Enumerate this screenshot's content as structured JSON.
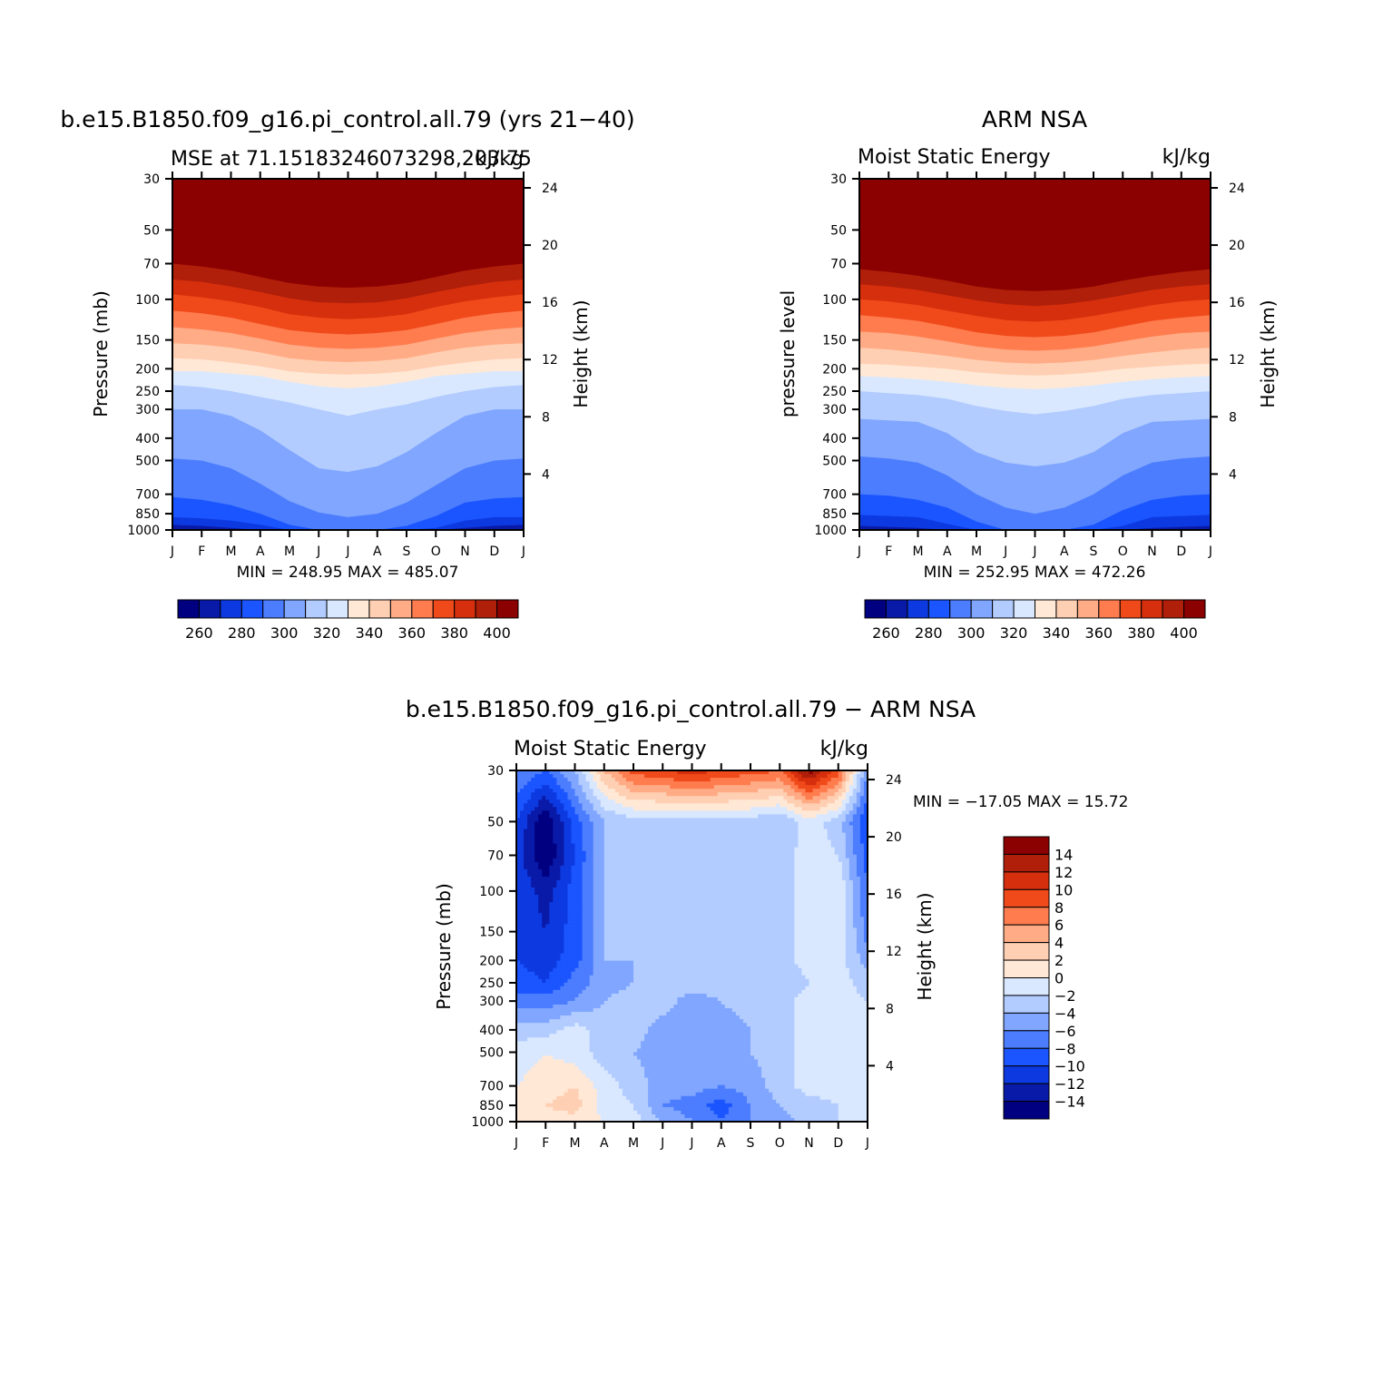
{
  "chart_data": [
    {
      "type": "heatmap",
      "title": "b.e15.B1850.f09_g16.pi_control.all.79 (yrs 21−40)",
      "subtitle_left": "MSE at 71.15183246073298,203.75",
      "subtitle_right": "kJ/kg",
      "ylabel": "Pressure (mb)",
      "ylabel_right": "Height (km)",
      "x_ticks": [
        "J",
        "F",
        "M",
        "A",
        "M",
        "J",
        "J",
        "A",
        "S",
        "O",
        "N",
        "D",
        "J"
      ],
      "y_ticks": [
        "30",
        "50",
        "70",
        "100",
        "150",
        "200",
        "250",
        "300",
        "400",
        "500",
        "700",
        "850",
        "1000"
      ],
      "y_ticks_right": [
        "24",
        "20",
        "16",
        "12",
        "8",
        "4"
      ],
      "min_max_text": "MIN = 248.95 MAX = 485.07",
      "contour_levels": [
        260,
        270,
        280,
        290,
        300,
        310,
        320,
        330,
        340,
        350,
        360,
        370,
        380,
        390,
        400
      ],
      "colorbar_labels": [
        "260",
        "280",
        "300",
        "320",
        "340",
        "360",
        "380",
        "400"
      ],
      "colors": [
        "#000080",
        "#0a1aa8",
        "#0d3ae0",
        "#1a55ff",
        "#4c7dff",
        "#80a6ff",
        "#b2ccff",
        "#d9e8ff",
        "#ffe8d5",
        "#ffcfb3",
        "#ffab85",
        "#ff7c4f",
        "#f04a1a",
        "#d62f0d",
        "#b01f0a",
        "#8b0000"
      ],
      "level_boundary_pressures": [
        [
          1000,
          1000,
          1000,
          1000,
          1000,
          1000,
          1000,
          1000,
          1000,
          1000,
          1000,
          1000,
          1000
        ],
        [
          950,
          960,
          980,
          1000,
          1000,
          1000,
          1000,
          1000,
          1000,
          1000,
          980,
          960,
          950
        ],
        [
          880,
          890,
          910,
          950,
          1000,
          1000,
          1000,
          1000,
          1000,
          980,
          910,
          880,
          880
        ],
        [
          720,
          740,
          780,
          850,
          950,
          1000,
          1000,
          1000,
          960,
          870,
          760,
          730,
          720
        ],
        [
          490,
          500,
          540,
          630,
          750,
          840,
          880,
          850,
          760,
          640,
          540,
          500,
          490
        ],
        [
          300,
          300,
          320,
          370,
          450,
          540,
          560,
          530,
          460,
          380,
          320,
          300,
          300
        ],
        [
          235,
          240,
          250,
          265,
          280,
          300,
          320,
          300,
          285,
          265,
          250,
          240,
          235
        ],
        [
          205,
          205,
          210,
          215,
          228,
          238,
          243,
          238,
          228,
          215,
          210,
          205,
          205
        ],
        [
          180,
          182,
          188,
          195,
          205,
          210,
          212,
          210,
          205,
          195,
          188,
          182,
          180
        ],
        [
          155,
          157,
          162,
          170,
          180,
          185,
          187,
          185,
          180,
          170,
          162,
          157,
          155
        ],
        [
          132,
          135,
          140,
          148,
          157,
          162,
          164,
          162,
          157,
          148,
          140,
          135,
          132
        ],
        [
          112,
          115,
          120,
          128,
          136,
          140,
          142,
          140,
          136,
          128,
          120,
          115,
          112
        ],
        [
          95,
          98,
          102,
          108,
          116,
          120,
          122,
          120,
          116,
          108,
          102,
          98,
          95
        ],
        [
          82,
          84,
          88,
          93,
          99,
          103,
          104,
          103,
          99,
          93,
          88,
          84,
          82
        ],
        [
          70,
          72,
          75,
          80,
          85,
          88,
          89,
          88,
          85,
          80,
          75,
          72,
          70
        ],
        [
          60,
          62,
          65,
          69,
          74,
          77,
          78,
          77,
          74,
          69,
          65,
          62,
          60
        ]
      ]
    },
    {
      "type": "heatmap",
      "title": "ARM NSA",
      "subtitle_left": "Moist Static Energy",
      "subtitle_right": "kJ/kg",
      "ylabel": "pressure level",
      "ylabel_right": "Height (km)",
      "x_ticks": [
        "J",
        "F",
        "M",
        "A",
        "M",
        "J",
        "J",
        "A",
        "S",
        "O",
        "N",
        "D",
        "J"
      ],
      "y_ticks": [
        "30",
        "50",
        "70",
        "100",
        "150",
        "200",
        "250",
        "300",
        "400",
        "500",
        "700",
        "850",
        "1000"
      ],
      "y_ticks_right": [
        "24",
        "20",
        "16",
        "12",
        "8",
        "4"
      ],
      "min_max_text": "MIN = 252.95 MAX = 472.26",
      "contour_levels": [
        260,
        270,
        280,
        290,
        300,
        310,
        320,
        330,
        340,
        350,
        360,
        370,
        380,
        390,
        400
      ],
      "colorbar_labels": [
        "260",
        "280",
        "300",
        "320",
        "340",
        "360",
        "380",
        "400"
      ],
      "colors": [
        "#000080",
        "#0a1aa8",
        "#0d3ae0",
        "#1a55ff",
        "#4c7dff",
        "#80a6ff",
        "#b2ccff",
        "#d9e8ff",
        "#ffe8d5",
        "#ffcfb3",
        "#ffab85",
        "#ff7c4f",
        "#f04a1a",
        "#d62f0d",
        "#b01f0a",
        "#8b0000"
      ],
      "level_boundary_pressures": [
        [
          1000,
          1000,
          1000,
          1000,
          1000,
          1000,
          1000,
          1000,
          1000,
          1000,
          1000,
          1000,
          1000
        ],
        [
          960,
          970,
          980,
          1000,
          1000,
          1000,
          1000,
          1000,
          1000,
          1000,
          980,
          970,
          960
        ],
        [
          860,
          870,
          880,
          940,
          1000,
          1000,
          1000,
          1000,
          1000,
          960,
          880,
          870,
          860
        ],
        [
          700,
          710,
          740,
          800,
          920,
          1000,
          1000,
          1000,
          950,
          820,
          740,
          710,
          700
        ],
        [
          480,
          490,
          510,
          580,
          700,
          800,
          850,
          800,
          700,
          580,
          510,
          490,
          480
        ],
        [
          330,
          335,
          340,
          380,
          460,
          510,
          530,
          510,
          460,
          380,
          340,
          335,
          330
        ],
        [
          250,
          255,
          260,
          270,
          290,
          305,
          315,
          305,
          290,
          270,
          260,
          255,
          250
        ],
        [
          215,
          218,
          222,
          228,
          236,
          242,
          245,
          242,
          236,
          228,
          222,
          218,
          215
        ],
        [
          190,
          192,
          196,
          200,
          207,
          212,
          214,
          212,
          207,
          200,
          196,
          192,
          190
        ],
        [
          162,
          165,
          170,
          176,
          183,
          188,
          190,
          188,
          183,
          176,
          170,
          165,
          162
        ],
        [
          138,
          140,
          145,
          152,
          160,
          165,
          167,
          165,
          160,
          152,
          145,
          140,
          138
        ],
        [
          117,
          120,
          124,
          131,
          139,
          144,
          146,
          144,
          139,
          131,
          124,
          120,
          117
        ],
        [
          100,
          102,
          106,
          112,
          118,
          123,
          125,
          123,
          118,
          112,
          106,
          102,
          100
        ],
        [
          86,
          88,
          91,
          96,
          101,
          105,
          107,
          105,
          101,
          96,
          91,
          88,
          86
        ],
        [
          74,
          76,
          79,
          83,
          88,
          91,
          92,
          91,
          88,
          83,
          79,
          76,
          74
        ],
        [
          64,
          66,
          68,
          72,
          76,
          79,
          80,
          79,
          76,
          72,
          68,
          66,
          64
        ]
      ]
    },
    {
      "type": "heatmap",
      "title": "b.e15.B1850.f09_g16.pi_control.all.79 − ARM NSA",
      "subtitle_left": "Moist Static Energy",
      "subtitle_right": "kJ/kg",
      "ylabel": "Pressure (mb)",
      "ylabel_right": "Height (km)",
      "x_ticks": [
        "J",
        "F",
        "M",
        "A",
        "M",
        "J",
        "J",
        "A",
        "S",
        "O",
        "N",
        "D",
        "J"
      ],
      "y_ticks": [
        "30",
        "50",
        "70",
        "100",
        "150",
        "200",
        "250",
        "300",
        "400",
        "500",
        "700",
        "850",
        "1000"
      ],
      "y_ticks_right": [
        "24",
        "20",
        "16",
        "12",
        "8",
        "4"
      ],
      "min_max_text": "MIN = −17.05 MAX = 15.72",
      "contour_levels": [
        -14,
        -12,
        -10,
        -8,
        -6,
        -4,
        -2,
        0,
        2,
        4,
        6,
        8,
        10,
        12,
        14
      ],
      "colorbar_labels": [
        "14",
        "12",
        "10",
        "8",
        "6",
        "4",
        "2",
        "0",
        "−2",
        "−4",
        "−6",
        "−8",
        "−10",
        "−12",
        "−14"
      ],
      "colors": [
        "#000080",
        "#0a1aa8",
        "#0d3ae0",
        "#1a55ff",
        "#4c7dff",
        "#80a6ff",
        "#b2ccff",
        "#d9e8ff",
        "#ffe8d5",
        "#ffcfb3",
        "#ffab85",
        "#ff7c4f",
        "#f04a1a",
        "#d62f0d",
        "#b01f0a",
        "#8b0000"
      ],
      "pressure_levels": [
        30,
        50,
        70,
        100,
        150,
        200,
        250,
        300,
        400,
        500,
        700,
        850,
        1000
      ],
      "months": [
        "Jan",
        "Feb",
        "Mar",
        "Apr",
        "May",
        "Jun",
        "Jul",
        "Aug",
        "Sep",
        "Oct",
        "Nov",
        "Dec",
        "Jan"
      ],
      "values": [
        [
          -6,
          -8,
          -4,
          4,
          9,
          10,
          11,
          10,
          9,
          8,
          15,
          9,
          -6
        ],
        [
          -10,
          -16,
          -9,
          -4,
          -3,
          -3,
          -3,
          -3,
          -3,
          -4,
          -1,
          -3,
          -10
        ],
        [
          -11,
          -16,
          -10,
          -4,
          -3,
          -3,
          -3,
          -3,
          -3,
          -3,
          -1,
          -2,
          -9
        ],
        [
          -10,
          -13,
          -9,
          -4,
          -3,
          -2,
          -3,
          -3,
          -3,
          -3,
          -1,
          0,
          -8
        ],
        [
          -10,
          -12,
          -9,
          -4,
          -3,
          -2,
          -2,
          -3,
          -3,
          -3,
          -1,
          0,
          -7
        ],
        [
          -10,
          -11,
          -9,
          -4,
          -4,
          -4,
          -3,
          -3,
          -4,
          -3,
          -1,
          -1,
          -5
        ],
        [
          -9,
          -10,
          -7,
          -5,
          -4,
          -3,
          -3,
          -3,
          -4,
          -4,
          -2,
          -1,
          -3
        ],
        [
          -7,
          -7,
          -6,
          -4,
          -3,
          -3,
          -5,
          -4,
          -3,
          -3,
          -1,
          -1,
          -2
        ],
        [
          -3,
          -3,
          -1,
          -3,
          -3,
          -5,
          -5,
          -5,
          -4,
          -3,
          -1,
          0,
          -1
        ],
        [
          -1,
          0,
          -1,
          -3,
          -4,
          -5,
          -5,
          -5,
          -4,
          -3,
          -1,
          -1,
          -1
        ],
        [
          0,
          1,
          2,
          -1,
          -3,
          -5,
          -5,
          -6,
          -5,
          -3,
          -1,
          -1,
          -1
        ],
        [
          1,
          2,
          3,
          -1,
          -2,
          -6,
          -7,
          -9,
          -6,
          -4,
          -3,
          -2,
          -2
        ],
        [
          0,
          1,
          1,
          0,
          -1,
          -4,
          -6,
          -8,
          -6,
          -5,
          -3,
          -2,
          -2
        ]
      ]
    }
  ]
}
